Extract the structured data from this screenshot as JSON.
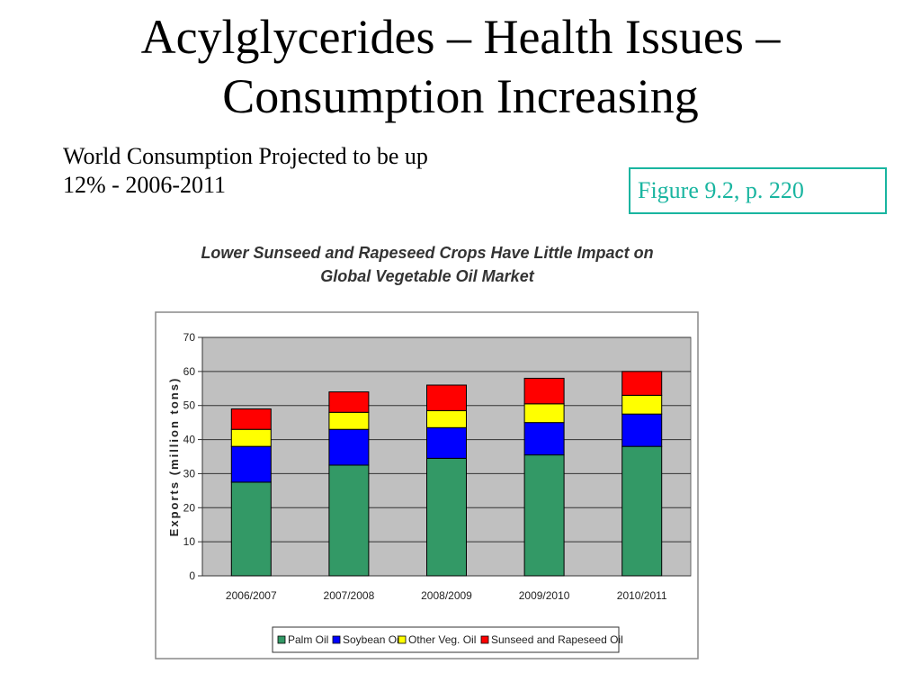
{
  "slide": {
    "title_line1": "Acylglycerides – Health Issues –",
    "title_line2": "Consumption Increasing",
    "subtitle_line1": "World Consumption Projected to be up",
    "subtitle_line2": "12% - 2006-2011",
    "figure_ref": "Figure 9.2, p. 220",
    "figure_ref_color": "#19b5a0"
  },
  "chart_data": {
    "type": "bar",
    "stacked": true,
    "title_line1": "Lower Sunseed and Rapeseed Crops Have Little Impact on",
    "title_line2": "Global Vegetable Oil Market",
    "ylabel": "Exports (million tons)",
    "xlabel": "",
    "ylim": [
      0,
      70
    ],
    "yticks": [
      0,
      10,
      20,
      30,
      40,
      50,
      60,
      70
    ],
    "grid": true,
    "legend_position": "bottom",
    "categories": [
      "2006/2007",
      "2007/2008",
      "2008/2009",
      "2009/2010",
      "2010/2011"
    ],
    "series": [
      {
        "name": "Palm Oil",
        "color": "#339966",
        "values": [
          27.5,
          32.5,
          34.5,
          35.5,
          38.0
        ]
      },
      {
        "name": "Soybean Oil",
        "color": "#0000ff",
        "values": [
          10.5,
          10.5,
          9.0,
          9.5,
          9.5
        ]
      },
      {
        "name": "Other Veg. Oil",
        "color": "#ffff00",
        "values": [
          5.0,
          5.0,
          5.0,
          5.5,
          5.5
        ]
      },
      {
        "name": "Sunseed and Rapeseed Oil",
        "color": "#ff0000",
        "values": [
          6.0,
          6.0,
          7.5,
          7.5,
          7.0
        ]
      }
    ]
  }
}
